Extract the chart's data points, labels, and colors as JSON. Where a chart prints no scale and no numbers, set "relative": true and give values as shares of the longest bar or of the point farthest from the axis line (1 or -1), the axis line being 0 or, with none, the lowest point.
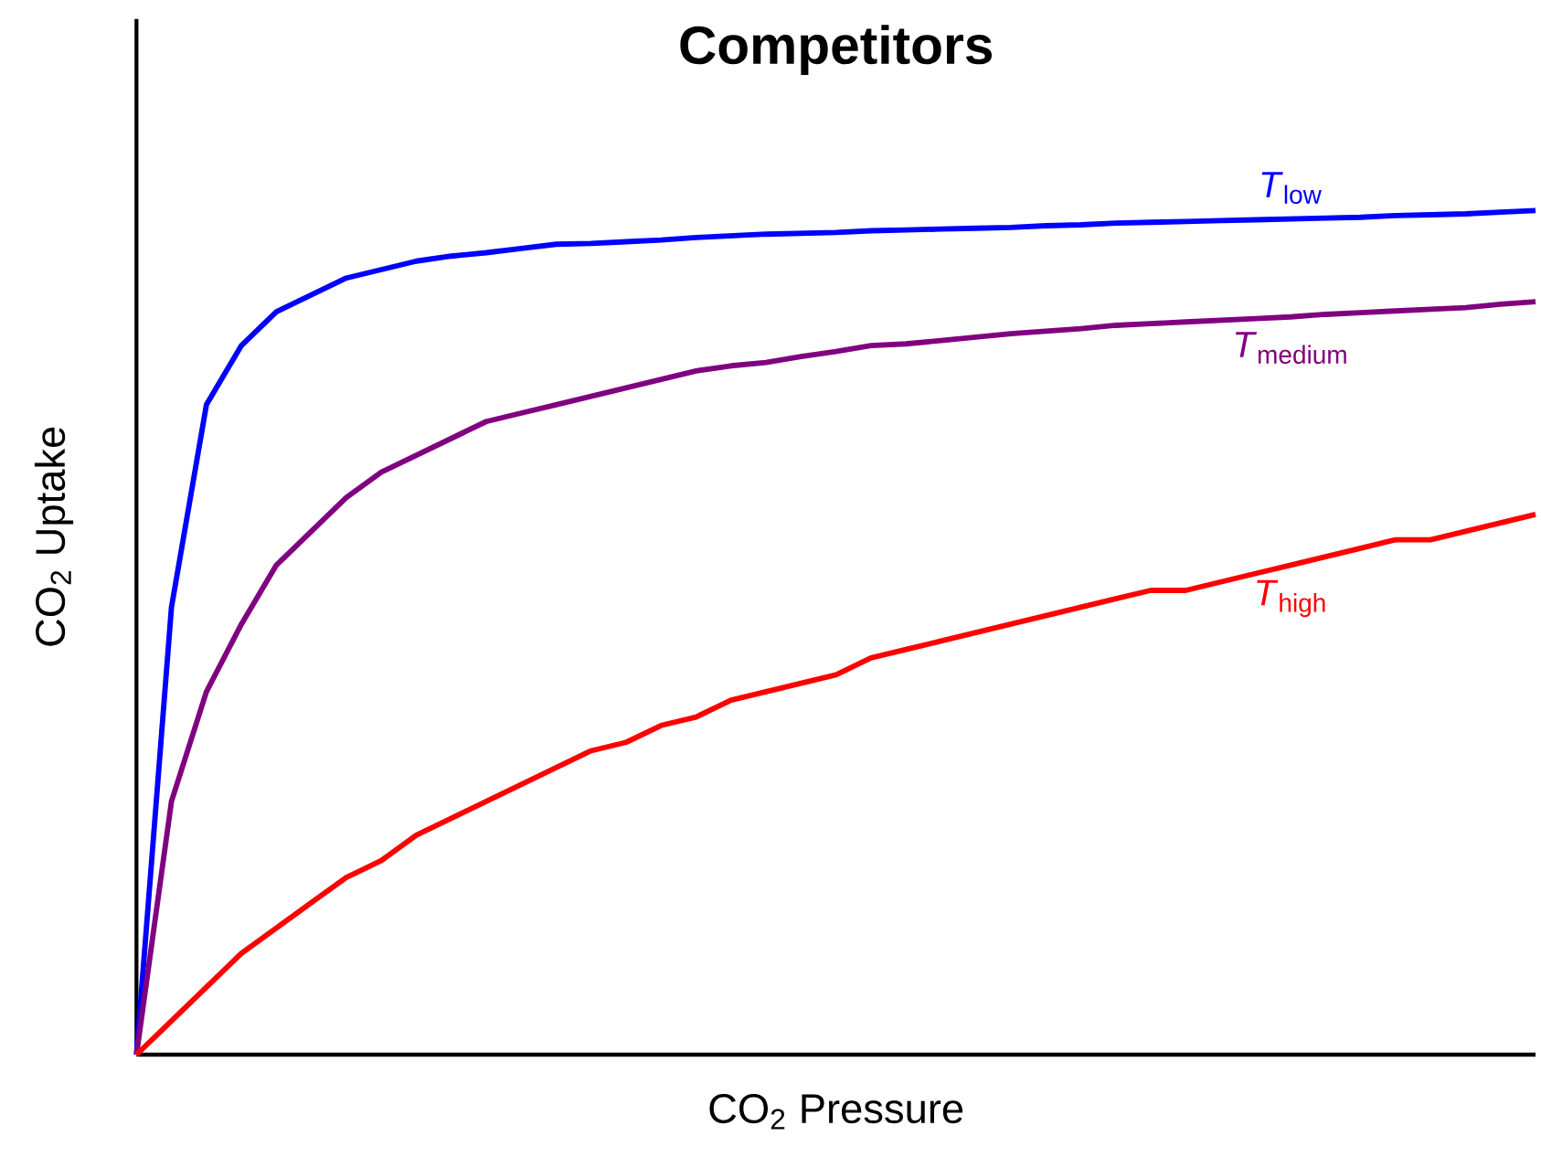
{
  "chart_data": {
    "type": "line",
    "title": "Competitors",
    "xlabel": "CO$_{2}$ Pressure",
    "ylabel": "CO$_{2}$ Uptake",
    "relative": true,
    "categories": [
      null,
      null,
      null,
      null,
      null,
      null,
      null,
      null,
      null,
      null,
      null,
      null,
      null,
      null,
      null,
      null,
      null,
      null,
      null,
      null,
      null,
      null,
      null,
      null,
      null,
      null,
      null,
      null,
      null,
      null,
      null,
      null,
      null,
      null,
      null,
      null,
      null,
      null,
      null,
      null,
      null
    ],
    "series": [
      {
        "name": "*T*$_{low}$",
        "color": "#0000ff",
        "values": [
          0,
          0.53,
          0.77,
          0.84,
          0.88,
          0.9,
          0.92,
          0.93,
          0.94,
          0.946,
          0.95,
          0.955,
          0.96,
          0.961,
          0.963,
          0.965,
          0.968,
          0.97,
          0.972,
          0.973,
          0.974,
          0.976,
          0.977,
          0.978,
          0.979,
          0.98,
          0.982,
          0.983,
          0.985,
          0.986,
          0.987,
          0.988,
          0.989,
          0.99,
          0.991,
          0.992,
          0.994,
          0.995,
          0.996,
          0.998,
          1
        ]
      },
      {
        "name": "*T*$_{medium}$",
        "color": "#800080",
        "values": [
          0,
          0.3,
          0.43,
          0.51,
          0.58,
          0.62,
          0.66,
          0.69,
          0.71,
          0.73,
          0.75,
          0.76,
          0.77,
          0.78,
          0.79,
          0.8,
          0.81,
          0.816,
          0.82,
          0.827,
          0.833,
          0.84,
          0.842,
          0.846,
          0.85,
          0.854,
          0.857,
          0.86,
          0.864,
          0.866,
          0.868,
          0.87,
          0.872,
          0.874,
          0.877,
          0.879,
          0.881,
          0.883,
          0.885,
          0.889,
          0.892
        ]
      },
      {
        "name": "*T*$_{high}$",
        "color": "#ff0000",
        "values": [
          0,
          0.04,
          0.08,
          0.12,
          0.15,
          0.18,
          0.21,
          0.23,
          0.26,
          0.28,
          0.3,
          0.32,
          0.34,
          0.36,
          0.37,
          0.39,
          0.4,
          0.42,
          0.43,
          0.44,
          0.45,
          0.47,
          0.48,
          0.49,
          0.5,
          0.51,
          0.52,
          0.53,
          0.54,
          0.55,
          0.55,
          0.56,
          0.57,
          0.58,
          0.59,
          0.6,
          0.61,
          0.61,
          0.62,
          0.63,
          0.64
        ]
      }
    ]
  }
}
